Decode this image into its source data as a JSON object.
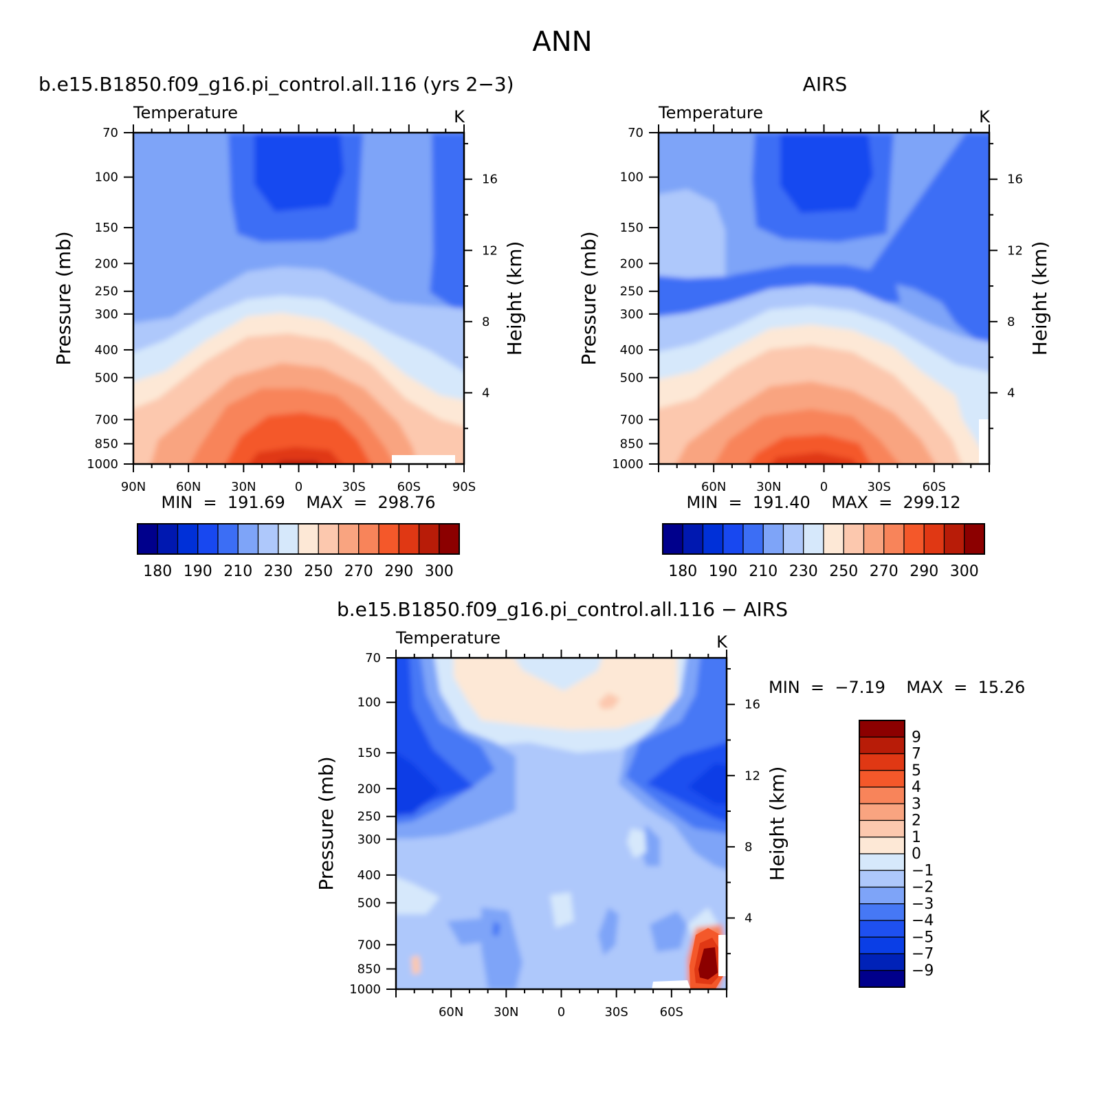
{
  "page": {
    "title": "ANN"
  },
  "palette": {
    "temperature": [
      "#00008c",
      "#0018b0",
      "#0030d8",
      "#1848f0",
      "#3c6ef5",
      "#7ea4f8",
      "#aec8fb",
      "#d6e8fb",
      "#fde8d6",
      "#fcc8ae",
      "#f9a480",
      "#f8845a",
      "#f4582a",
      "#e03814",
      "#b81c08",
      "#8c0000"
    ],
    "difference": [
      "#00008c",
      "#0022b8",
      "#0a3ee6",
      "#1e50f0",
      "#4678f5",
      "#7ea4f8",
      "#aec8fb",
      "#d6e8fb",
      "#fde8d6",
      "#fcc8ae",
      "#f9a480",
      "#f8845a",
      "#f4582a",
      "#e03814",
      "#b81c08",
      "#8c0000"
    ]
  },
  "chart_data": [
    {
      "id": "model",
      "type": "contour",
      "title": "b.e15.B1850.f09_g16.pi_control.all.116 (yrs 2−3)",
      "variable": "Temperature",
      "units": "K",
      "ylabel": "Pressure (mb)",
      "ylabel_right": "Height (km)",
      "x_ticks": [
        "90N",
        "60N",
        "30N",
        "0",
        "30S",
        "60S",
        "90S"
      ],
      "y_ticks": [
        "70",
        "100",
        "150",
        "200",
        "250",
        "300",
        "400",
        "500",
        "700",
        "850",
        "1000"
      ],
      "y_ticks_right": [
        "16",
        "12",
        "8",
        "4"
      ],
      "stats": {
        "min": "191.69",
        "max": "298.76",
        "text": "MIN = 191.69 MAX = 298.76"
      },
      "colorbar_labels": [
        "180",
        "190",
        "210",
        "230",
        "250",
        "270",
        "290",
        "300"
      ],
      "levels": [
        180,
        185,
        190,
        200,
        210,
        220,
        230,
        240,
        250,
        260,
        270,
        280,
        290,
        295,
        300
      ]
    },
    {
      "id": "obs",
      "type": "contour",
      "title": "AIRS",
      "variable": "Temperature",
      "units": "K",
      "ylabel": "Pressure (mb)",
      "ylabel_right": "Height (km)",
      "x_ticks": [
        "60N",
        "30N",
        "0",
        "30S",
        "60S"
      ],
      "y_ticks": [
        "70",
        "100",
        "150",
        "200",
        "250",
        "300",
        "400",
        "500",
        "700",
        "850",
        "1000"
      ],
      "y_ticks_right": [
        "16",
        "12",
        "8",
        "4"
      ],
      "stats": {
        "min": "191.40",
        "max": "299.12",
        "text": "MIN = 191.40 MAX = 299.12"
      },
      "colorbar_labels": [
        "180",
        "190",
        "210",
        "230",
        "250",
        "270",
        "290",
        "300"
      ],
      "levels": [
        180,
        185,
        190,
        200,
        210,
        220,
        230,
        240,
        250,
        260,
        270,
        280,
        290,
        295,
        300
      ]
    },
    {
      "id": "diff",
      "type": "contour",
      "title": "b.e15.B1850.f09_g16.pi_control.all.116 − AIRS",
      "variable": "Temperature",
      "units": "K",
      "ylabel": "Pressure (mb)",
      "ylabel_right": "Height (km)",
      "x_ticks": [
        "60N",
        "30N",
        "0",
        "30S",
        "60S"
      ],
      "y_ticks": [
        "70",
        "100",
        "150",
        "200",
        "250",
        "300",
        "400",
        "500",
        "700",
        "850",
        "1000"
      ],
      "y_ticks_right": [
        "16",
        "12",
        "8",
        "4"
      ],
      "stats": {
        "min": "−7.19",
        "max": "15.26",
        "text": "MIN = −7.19 MAX = 15.26"
      },
      "colorbar_labels": [
        "9",
        "7",
        "5",
        "4",
        "3",
        "2",
        "1",
        "0",
        "−1",
        "−2",
        "−3",
        "−4",
        "−5",
        "−7",
        "−9"
      ],
      "levels": [
        -9,
        -7,
        -5,
        -4,
        -3,
        -2,
        -1,
        0,
        1,
        2,
        3,
        4,
        5,
        7,
        9
      ]
    }
  ]
}
